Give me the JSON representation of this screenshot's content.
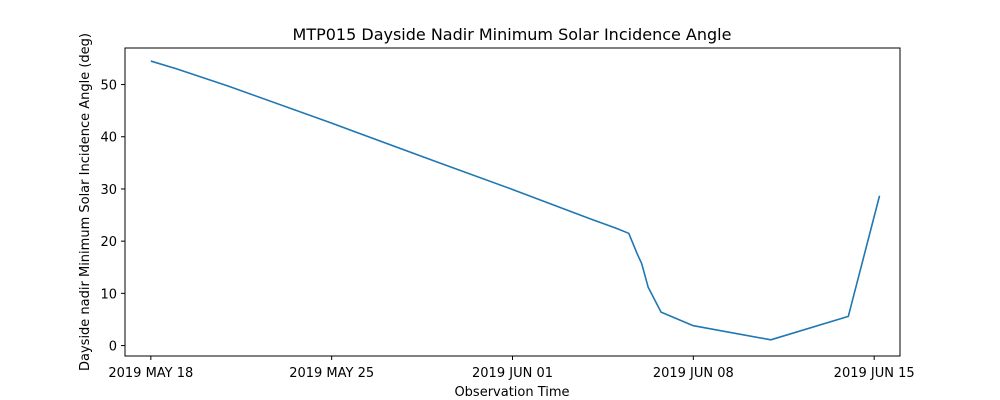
{
  "chart_data": {
    "type": "line",
    "title": "MTP015 Dayside Nadir Minimum Solar Incidence Angle",
    "xlabel": "Observation Time",
    "ylabel": "Dayside nadir Minimum Solar Incidence Angle (deg)",
    "x_ticks": [
      "2019 MAY 18",
      "2019 MAY 25",
      "2019 JUN 01",
      "2019 JUN 08",
      "2019 JUN 15"
    ],
    "y_ticks": [
      "0",
      "10",
      "20",
      "30",
      "40",
      "50"
    ],
    "xlim": [
      "2019-05-17 00:00",
      "2019-06-16 00:00"
    ],
    "ylim": [
      -2,
      57
    ],
    "grid": false,
    "color": "#1f77b4",
    "series": [
      {
        "x": [
          "2019-05-18 00:00",
          "2019-05-19 00:00",
          "2019-05-21 00:00",
          "2019-05-25 00:00",
          "2019-05-29 00:00",
          "2019-06-01 00:00",
          "2019-06-04 00:00",
          "2019-06-05 00:00",
          "2019-06-05 12:00",
          "2019-06-05 20:00",
          "2019-06-06 00:00",
          "2019-06-06 06:00",
          "2019-06-06 18:00",
          "2019-06-08 00:00",
          "2019-06-11 00:00",
          "2019-06-14 00:00",
          "2019-06-15 05:00"
        ],
        "y": [
          54.5,
          53.0,
          49.7,
          42.6,
          35.3,
          29.9,
          24.3,
          22.5,
          21.5,
          17.5,
          15.7,
          11.2,
          6.4,
          3.8,
          1.1,
          5.6,
          28.7
        ]
      }
    ]
  }
}
